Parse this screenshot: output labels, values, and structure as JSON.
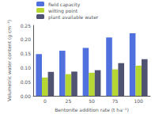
{
  "chart_data": {
    "type": "bar",
    "categories": [
      "0",
      "25",
      "50",
      "75",
      "100"
    ],
    "series": [
      {
        "name": "field capacity",
        "values": [
          0.148,
          0.16,
          0.17,
          0.207,
          0.222
        ]
      },
      {
        "name": "wilting point",
        "values": [
          0.065,
          0.077,
          0.082,
          0.094,
          0.107
        ]
      },
      {
        "name": "plant available water",
        "values": [
          0.085,
          0.086,
          0.091,
          0.116,
          0.13
        ]
      }
    ],
    "xlabel": "Bentonite addition rate (t ha⁻¹)",
    "ylabel": "Volumetric water content (g cm⁻³)",
    "ylim": [
      0.0,
      0.25
    ],
    "yticks": [
      {
        "value": 0.0,
        "label": "0.00"
      },
      0.05,
      {
        "value": 0.1,
        "label": "0.10"
      },
      0.15,
      {
        "value": 0.2,
        "label": "0.20"
      },
      0.25
    ],
    "legend": "upper left",
    "grid": false
  }
}
